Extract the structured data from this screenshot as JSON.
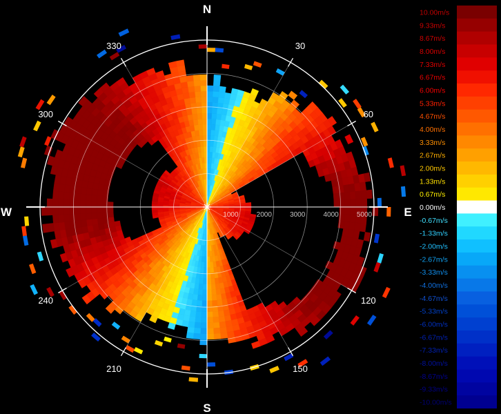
{
  "chart_data": {
    "type": "polar-ppi",
    "title": "",
    "compass": {
      "north": "N",
      "east": "E",
      "south": "S",
      "west": "W"
    },
    "bearing_labels": [
      "30",
      "60",
      "120",
      "150",
      "210",
      "240",
      "300",
      "330"
    ],
    "range_rings": {
      "labels": [
        "1000",
        "2000",
        "3000",
        "4000",
        "5000"
      ],
      "max": 5000
    },
    "colorbar": {
      "labels": [
        "10.00m/s",
        "9.33m/s",
        "8.67m/s",
        "8.00m/s",
        "7.33m/s",
        "6.67m/s",
        "6.00m/s",
        "5.33m/s",
        "4.67m/s",
        "4.00m/s",
        "3.33m/s",
        "2.67m/s",
        "2.00m/s",
        "1.33m/s",
        "0.67m/s",
        "0.00m/s",
        "-0.67m/s",
        "-1.33m/s",
        "-2.00m/s",
        "-2.67m/s",
        "-3.33m/s",
        "-4.00m/s",
        "-4.67m/s",
        "-5.33m/s",
        "-6.00m/s",
        "-6.67m/s",
        "-7.33m/s",
        "-8.00m/s",
        "-8.67m/s",
        "-9.33m/s",
        "-10.00m/s"
      ],
      "colors": [
        "#7a0000",
        "#960000",
        "#b00000",
        "#c80000",
        "#e00000",
        "#f01000",
        "#ff2800",
        "#ff4000",
        "#ff5800",
        "#ff7000",
        "#ff8800",
        "#ffa000",
        "#ffb800",
        "#ffd000",
        "#ffe800",
        "#ffffff",
        "#40f0ff",
        "#20d8ff",
        "#10c0ff",
        "#08a8f8",
        "#0890f0",
        "#0878e8",
        "#0860e0",
        "#0050d8",
        "#0040d0",
        "#0030c8",
        "#0020c0",
        "#0010b8",
        "#0008b0",
        "#0004a0",
        "#000090"
      ],
      "label_colors": [
        "#c00000",
        "#c80000",
        "#d00000",
        "#d80000",
        "#e00000",
        "#e80000",
        "#f00000",
        "#ff2000",
        "#ff5000",
        "#ff7000",
        "#ff9000",
        "#ffb000",
        "#ffc800",
        "#ffe000",
        "#fff000",
        "#ffffff",
        "#40e0ff",
        "#30d0ff",
        "#20c0ff",
        "#10a0f0",
        "#1090f0",
        "#1070e0",
        "#1050d0",
        "#0040c8",
        "#0030c0",
        "#0020b0",
        "#0020b0",
        "#0010a0",
        "#000090",
        "#000080",
        "#000070"
      ]
    }
  }
}
